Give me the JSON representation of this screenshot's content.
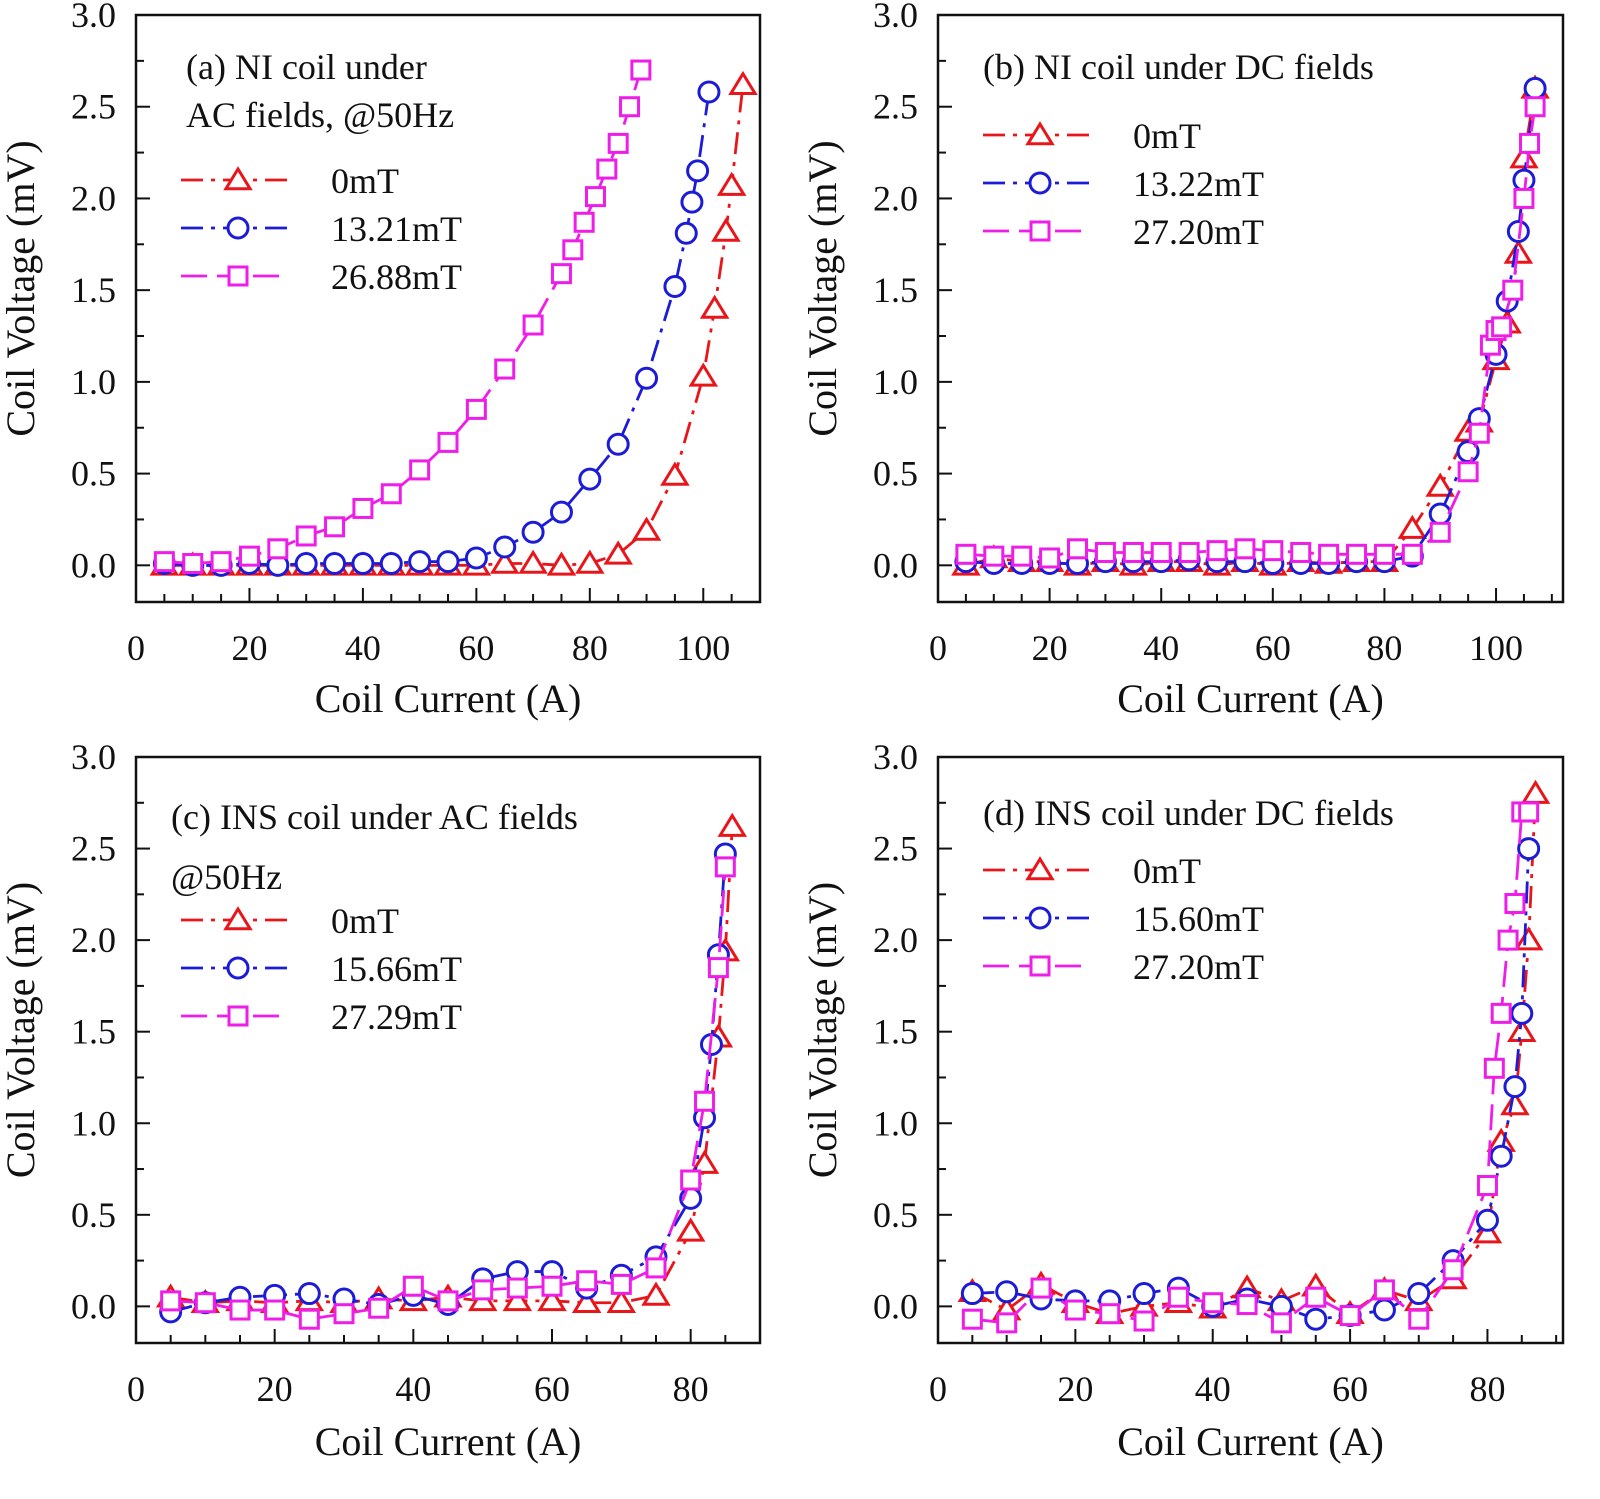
{
  "chart_data": [
    {
      "id": "a",
      "type": "line",
      "title_lines": [
        "(a) NI coil under",
        "AC fields, @50Hz"
      ],
      "xlabel": "Coil Current (A)",
      "ylabel": "Coil Voltage (mV)",
      "xlim": [
        0,
        110
      ],
      "ylim": [
        -0.2,
        3.0
      ],
      "xticks": [
        0,
        20,
        40,
        60,
        80,
        100
      ],
      "yticks": [
        0.0,
        0.5,
        1.0,
        1.5,
        2.0,
        2.5,
        3.0
      ],
      "ytick_labels": [
        "0.0",
        "0.5",
        "1.0",
        "1.5",
        "2.0",
        "2.5",
        "3.0"
      ],
      "xminor": 5,
      "yminor": 0.25,
      "grid": false,
      "legend_position": "top-left",
      "series": [
        {
          "name": "0mT",
          "marker": "triangle",
          "color": "#e8161b",
          "x": [
            5,
            10,
            15,
            20,
            25,
            30,
            35,
            40,
            45,
            50,
            55,
            60,
            65,
            70,
            75,
            80,
            85,
            90,
            95,
            100,
            102,
            104,
            105,
            107
          ],
          "y": [
            0,
            0,
            0,
            0,
            0,
            0,
            0,
            0,
            0,
            0,
            0,
            0,
            0.01,
            0.01,
            0.0,
            0.01,
            0.06,
            0.19,
            0.49,
            1.03,
            1.4,
            1.82,
            2.07,
            2.62
          ]
        },
        {
          "name": "13.21mT",
          "marker": "circle",
          "color": "#1c1cd6",
          "x": [
            5,
            10,
            15,
            20,
            25,
            30,
            35,
            40,
            45,
            50,
            55,
            60,
            65,
            70,
            75,
            80,
            85,
            90,
            95,
            97,
            98,
            99,
            101
          ],
          "y": [
            0.01,
            0.0,
            0.0,
            0.01,
            0.0,
            0.01,
            0.01,
            0.01,
            0.01,
            0.02,
            0.02,
            0.04,
            0.1,
            0.18,
            0.29,
            0.47,
            0.66,
            1.02,
            1.52,
            1.81,
            1.98,
            2.15,
            2.58
          ]
        },
        {
          "name": "26.88mT",
          "marker": "square",
          "color": "#ee1ee8",
          "x": [
            5,
            10,
            15,
            20,
            25,
            30,
            35,
            40,
            45,
            50,
            55,
            60,
            65,
            70,
            75,
            77,
            79,
            81,
            83,
            85,
            87,
            89
          ],
          "y": [
            0.02,
            0.01,
            0.02,
            0.05,
            0.09,
            0.16,
            0.21,
            0.31,
            0.39,
            0.52,
            0.67,
            0.85,
            1.07,
            1.31,
            1.59,
            1.72,
            1.87,
            2.01,
            2.16,
            2.3,
            2.5,
            2.7
          ]
        }
      ]
    },
    {
      "id": "b",
      "type": "line",
      "title_lines": [
        "(b) NI coil under DC fields"
      ],
      "xlabel": "Coil Current (A)",
      "ylabel": "Coil Voltage (mV)",
      "xlim": [
        0,
        112
      ],
      "ylim": [
        -0.2,
        3.0
      ],
      "xticks": [
        0,
        20,
        40,
        60,
        80,
        100
      ],
      "yticks": [
        0.0,
        0.5,
        1.0,
        1.5,
        2.0,
        2.5,
        3.0
      ],
      "ytick_labels": [
        "0.0",
        "0.5",
        "1.0",
        "1.5",
        "2.0",
        "2.5",
        "3.0"
      ],
      "xminor": 5,
      "yminor": 0.25,
      "grid": false,
      "legend_position": "top-left",
      "series": [
        {
          "name": "0mT",
          "marker": "triangle",
          "color": "#e8161b",
          "x": [
            5,
            10,
            15,
            20,
            25,
            30,
            35,
            40,
            45,
            50,
            55,
            60,
            65,
            70,
            75,
            80,
            85,
            90,
            95,
            97,
            100,
            102,
            104,
            105,
            107
          ],
          "y": [
            0,
            0.04,
            0.02,
            0.02,
            0,
            0.02,
            0,
            0.02,
            0.02,
            0,
            0.02,
            0,
            0.02,
            0.01,
            0.02,
            0.02,
            0.2,
            0.43,
            0.73,
            0.78,
            1.12,
            1.32,
            1.7,
            2.22,
            2.6
          ]
        },
        {
          "name": "13.22mT",
          "marker": "circle",
          "color": "#1c1cd6",
          "x": [
            5,
            10,
            15,
            20,
            25,
            30,
            35,
            40,
            45,
            50,
            55,
            60,
            65,
            70,
            75,
            80,
            85,
            90,
            95,
            97,
            100,
            102,
            104,
            105,
            107
          ],
          "y": [
            0.02,
            0.01,
            0.01,
            0.01,
            0.01,
            0.02,
            0.02,
            0.02,
            0.03,
            0.02,
            0.02,
            0.01,
            0.01,
            0.01,
            0.02,
            0.02,
            0.05,
            0.28,
            0.62,
            0.8,
            1.15,
            1.44,
            1.82,
            2.1,
            2.6
          ]
        },
        {
          "name": "27.20mT",
          "marker": "square",
          "color": "#ee1ee8",
          "x": [
            5,
            10,
            15,
            20,
            25,
            30,
            35,
            40,
            45,
            50,
            55,
            60,
            65,
            70,
            75,
            80,
            85,
            90,
            95,
            97,
            99,
            100,
            101,
            103,
            105,
            106,
            107
          ],
          "y": [
            0.06,
            0.05,
            0.05,
            0.04,
            0.09,
            0.07,
            0.07,
            0.07,
            0.07,
            0.08,
            0.09,
            0.08,
            0.07,
            0.06,
            0.06,
            0.06,
            0.06,
            0.18,
            0.51,
            0.72,
            1.2,
            1.28,
            1.3,
            1.5,
            2.0,
            2.3,
            2.5
          ]
        }
      ]
    },
    {
      "id": "c",
      "type": "line",
      "title_lines": [
        "(c) INS coil under AC fields",
        "@50Hz"
      ],
      "xlabel": "Coil Current (A)",
      "ylabel": "Coil Voltage (mV)",
      "xlim": [
        0,
        90
      ],
      "ylim": [
        -0.2,
        3.0
      ],
      "xticks": [
        0,
        20,
        40,
        60,
        80
      ],
      "yticks": [
        0.0,
        0.5,
        1.0,
        1.5,
        2.0,
        2.5,
        3.0
      ],
      "ytick_labels": [
        "0.0",
        "0.5",
        "1.0",
        "1.5",
        "2.0",
        "2.5",
        "3.0"
      ],
      "xminor": 5,
      "yminor": 0.25,
      "grid": false,
      "legend_position": "top-left",
      "series": [
        {
          "name": "0mT",
          "marker": "triangle",
          "color": "#e8161b",
          "x": [
            5,
            10,
            15,
            20,
            25,
            30,
            35,
            40,
            45,
            50,
            55,
            60,
            65,
            70,
            75,
            80,
            82,
            84,
            85,
            86
          ],
          "y": [
            0.05,
            0.02,
            0.03,
            0.02,
            0.03,
            0.02,
            0.04,
            0.03,
            0.05,
            0.03,
            0.03,
            0.03,
            0.02,
            0.02,
            0.06,
            0.41,
            0.78,
            1.47,
            1.94,
            2.62
          ]
        },
        {
          "name": "15.66mT",
          "marker": "circle",
          "color": "#1c1cd6",
          "x": [
            5,
            10,
            15,
            20,
            25,
            30,
            35,
            40,
            45,
            50,
            55,
            60,
            65,
            70,
            75,
            80,
            82,
            83,
            84,
            85
          ],
          "y": [
            -0.03,
            0.02,
            0.05,
            0.06,
            0.07,
            0.04,
            0.01,
            0.06,
            0.01,
            0.15,
            0.19,
            0.19,
            0.1,
            0.17,
            0.27,
            0.59,
            1.03,
            1.43,
            1.92,
            2.47
          ]
        },
        {
          "name": "27.29mT",
          "marker": "square",
          "color": "#ee1ee8",
          "x": [
            5,
            10,
            15,
            20,
            25,
            30,
            35,
            40,
            45,
            50,
            55,
            60,
            65,
            70,
            75,
            80,
            82,
            84,
            85
          ],
          "y": [
            0.03,
            0.02,
            -0.02,
            -0.02,
            -0.07,
            -0.04,
            -0.01,
            0.11,
            0.03,
            0.09,
            0.1,
            0.11,
            0.14,
            0.12,
            0.21,
            0.69,
            1.12,
            1.85,
            2.4
          ]
        }
      ]
    },
    {
      "id": "d",
      "type": "line",
      "title_lines": [
        "(d) INS coil under DC fields"
      ],
      "xlabel": "Coil Current (A)",
      "ylabel": "Coil Voltage (mV)",
      "xlim": [
        0,
        91
      ],
      "ylim": [
        -0.2,
        3.0
      ],
      "xticks": [
        0,
        20,
        40,
        60,
        80
      ],
      "yticks": [
        0.0,
        0.5,
        1.0,
        1.5,
        2.0,
        2.5,
        3.0
      ],
      "ytick_labels": [
        "0.0",
        "0.5",
        "1.0",
        "1.5",
        "2.0",
        "2.5",
        "3.0"
      ],
      "xminor": 5,
      "yminor": 0.25,
      "grid": false,
      "legend_position": "top-left",
      "series": [
        {
          "name": "0mT",
          "marker": "triangle",
          "color": "#e8161b",
          "x": [
            5,
            10,
            15,
            20,
            25,
            30,
            35,
            40,
            45,
            50,
            55,
            60,
            65,
            70,
            75,
            80,
            82,
            84,
            85,
            86,
            87
          ],
          "y": [
            0.08,
            -0.02,
            0.12,
            0.02,
            -0.04,
            0.0,
            0.02,
            -0.01,
            0.1,
            0.03,
            0.11,
            -0.04,
            0.09,
            0.03,
            0.15,
            0.4,
            0.9,
            1.1,
            1.5,
            2.0,
            2.8
          ]
        },
        {
          "name": "15.60mT",
          "marker": "circle",
          "color": "#1c1cd6",
          "x": [
            5,
            10,
            15,
            20,
            25,
            30,
            35,
            40,
            45,
            50,
            55,
            60,
            65,
            70,
            75,
            80,
            82,
            84,
            85,
            86
          ],
          "y": [
            0.07,
            0.08,
            0.04,
            0.03,
            0.03,
            0.07,
            0.1,
            0.0,
            0.04,
            0.0,
            -0.07,
            -0.05,
            -0.02,
            0.07,
            0.25,
            0.47,
            0.82,
            1.2,
            1.6,
            2.5
          ]
        },
        {
          "name": "27.20mT",
          "marker": "square",
          "color": "#ee1ee8",
          "x": [
            5,
            10,
            15,
            20,
            25,
            30,
            35,
            40,
            45,
            50,
            55,
            60,
            65,
            70,
            75,
            80,
            81,
            82,
            83,
            84,
            85,
            86
          ],
          "y": [
            -0.07,
            -0.09,
            0.1,
            -0.02,
            -0.04,
            -0.08,
            0.05,
            0.02,
            0.01,
            -0.09,
            0.05,
            -0.05,
            0.09,
            -0.07,
            0.2,
            0.66,
            1.3,
            1.6,
            2.0,
            2.2,
            2.7,
            2.7
          ]
        }
      ]
    }
  ]
}
